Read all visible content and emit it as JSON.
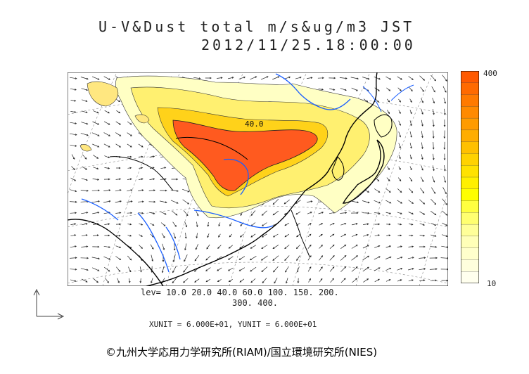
{
  "title": {
    "line1": "U-V&Dust total m/s&ug/m3 JST",
    "line2": "2012/11/25.18:00:00"
  },
  "colorbar": {
    "max_label": "400",
    "min_label": "10",
    "colors": [
      "#ff5a00",
      "#ff6a00",
      "#ff7a00",
      "#ff8a00",
      "#ff9b00",
      "#ffad00",
      "#ffc000",
      "#ffd200",
      "#ffe200",
      "#fff000",
      "#ffff00",
      "#ffff40",
      "#ffff70",
      "#ffff99",
      "#ffffb8",
      "#ffffcc",
      "#ffffdd",
      "#ffffee"
    ]
  },
  "map": {
    "contour_label": "40.0",
    "colors": {
      "dust_core": "#ff5a1f",
      "dust_mid": "#ffd400",
      "dust_low": "#ffffb0",
      "coast": "#000000",
      "river": "#1a5fff",
      "grid": "#777777"
    }
  },
  "legend": {
    "levels_line1": "lev= 10.0 20.0 40.0 60.0 100. 150. 200.",
    "levels_line2": "300. 400.",
    "units": "XUNIT = 6.000E+01, YUNIT = 6.000E+01"
  },
  "credit": "©九州大学応用力学研究所(RIAM)/国立環境研究所(NIES)"
}
